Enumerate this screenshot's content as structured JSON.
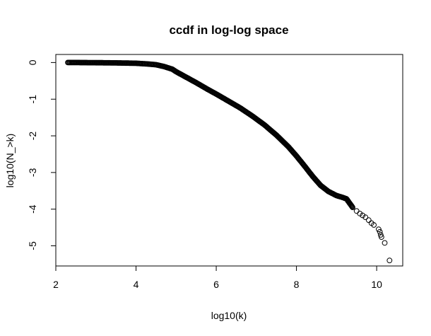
{
  "chart_data": {
    "type": "scatter",
    "title": "ccdf in log-log space",
    "xlabel": "log10(k)",
    "ylabel": "log10(N_>k)",
    "xlim": [
      2.0,
      10.65
    ],
    "ylim": [
      -5.55,
      0.22
    ],
    "x_ticks": [
      "2",
      "4",
      "6",
      "8",
      "10"
    ],
    "y_ticks": [
      "0",
      "-1",
      "-2",
      "-3",
      "-4",
      "-5"
    ],
    "grid": false,
    "legend": "none",
    "marker": "open-circle",
    "curve_points": [
      [
        2.3,
        0.0
      ],
      [
        2.5,
        0.0
      ],
      [
        3.0,
        -0.005
      ],
      [
        3.5,
        -0.01
      ],
      [
        4.0,
        -0.02
      ],
      [
        4.3,
        -0.04
      ],
      [
        4.5,
        -0.06
      ],
      [
        4.7,
        -0.11
      ],
      [
        4.9,
        -0.18
      ],
      [
        5.0,
        -0.25
      ],
      [
        5.2,
        -0.37
      ],
      [
        5.5,
        -0.55
      ],
      [
        5.8,
        -0.74
      ],
      [
        6.0,
        -0.86
      ],
      [
        6.3,
        -1.05
      ],
      [
        6.6,
        -1.24
      ],
      [
        6.9,
        -1.46
      ],
      [
        7.2,
        -1.7
      ],
      [
        7.5,
        -1.98
      ],
      [
        7.8,
        -2.3
      ],
      [
        8.0,
        -2.55
      ],
      [
        8.2,
        -2.82
      ],
      [
        8.4,
        -3.1
      ],
      [
        8.6,
        -3.35
      ],
      [
        8.8,
        -3.52
      ],
      [
        9.0,
        -3.63
      ],
      [
        9.15,
        -3.68
      ],
      [
        9.25,
        -3.72
      ],
      [
        9.3,
        -3.8
      ],
      [
        9.4,
        -3.95
      ]
    ],
    "tail_points": [
      [
        9.5,
        -4.05
      ],
      [
        9.58,
        -4.12
      ],
      [
        9.65,
        -4.17
      ],
      [
        9.72,
        -4.22
      ],
      [
        9.8,
        -4.3
      ],
      [
        9.87,
        -4.38
      ],
      [
        9.93,
        -4.43
      ],
      [
        10.05,
        -4.55
      ],
      [
        10.08,
        -4.62
      ],
      [
        10.1,
        -4.7
      ],
      [
        10.12,
        -4.76
      ],
      [
        10.2,
        -4.92
      ],
      [
        10.32,
        -5.4
      ]
    ]
  }
}
